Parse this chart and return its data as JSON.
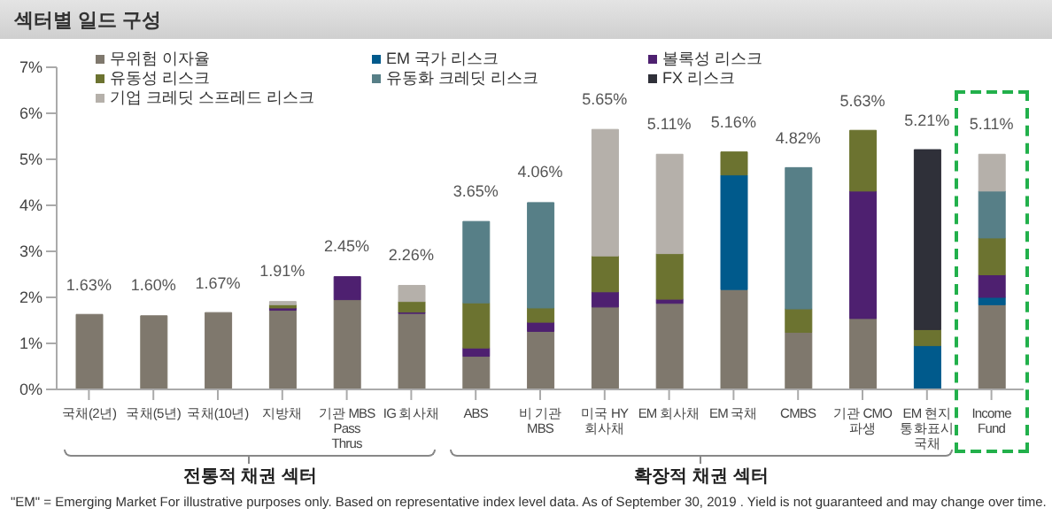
{
  "chart_data": {
    "type": "bar",
    "title": "섹터별 일드 구성",
    "categories": [
      "국채(2년)",
      "국채(5년)",
      "국채(10년)",
      "지방채",
      "기관 MBS\nPass\nThrus",
      "IG 회사채",
      "ABS",
      "비 기관\nMBS",
      "미국 HY\n회사채",
      "EM 회사채",
      "EM 국채",
      "CMBS",
      "기관 CMO\n파생",
      "EM 현지\n통화표시\n국채",
      "Income\nFund"
    ],
    "stacked": true,
    "series": [
      {
        "name": "무위험 이자율",
        "color": "#7f786d",
        "values": [
          1.63,
          1.6,
          1.67,
          1.72,
          1.95,
          1.65,
          0.72,
          1.26,
          1.79,
          1.87,
          2.17,
          1.24,
          1.54,
          0,
          1.84
        ]
      },
      {
        "name": "EM 국가 리스크",
        "color": "#005a8c",
        "values": [
          0,
          0,
          0,
          0,
          0,
          0,
          0,
          0,
          0,
          0,
          2.49,
          0,
          0,
          0.95,
          0.16
        ]
      },
      {
        "name": "볼록성 리스크",
        "color": "#4e2070",
        "values": [
          0,
          0,
          0,
          0.05,
          0.5,
          0.03,
          0.18,
          0.2,
          0.33,
          0.09,
          0,
          0,
          2.77,
          0,
          0.49
        ]
      },
      {
        "name": "유동성 리스크",
        "color": "#6c7330",
        "values": [
          0,
          0,
          0,
          0.07,
          0,
          0.23,
          0.98,
          0.31,
          0.78,
          0.99,
          0.5,
          0.51,
          1.32,
          0.35,
          0.8
        ]
      },
      {
        "name": "유동화 크레딧 리스크",
        "color": "#577f87",
        "values": [
          0,
          0,
          0,
          0,
          0,
          0,
          1.77,
          2.29,
          0,
          0,
          0,
          3.07,
          0,
          0,
          1.02
        ]
      },
      {
        "name": "FX 리스크",
        "color": "#2f3039",
        "values": [
          0,
          0,
          0,
          0,
          0,
          0,
          0,
          0,
          0,
          0,
          0,
          0,
          0,
          3.91,
          0
        ]
      },
      {
        "name": "기업 크레딧 스프레드 리스크",
        "color": "#b5b0aa",
        "values": [
          0,
          0,
          0,
          0.07,
          0,
          0.35,
          0,
          0,
          2.75,
          2.16,
          0,
          0,
          0,
          0,
          0.8
        ]
      }
    ],
    "totals": [
      "1.63%",
      "1.60%",
      "1.67%",
      "1.91%",
      "2.45%",
      "2.26%",
      "3.65%",
      "4.06%",
      "5.65%",
      "5.11%",
      "5.16%",
      "4.82%",
      "5.63%",
      "5.21%",
      "5.11%"
    ],
    "ylim": [
      0,
      7
    ],
    "yticks": [
      {
        "value": 0,
        "label": "0%"
      },
      {
        "value": 1,
        "label": "1%"
      },
      {
        "value": 2,
        "label": "2%"
      },
      {
        "value": 3,
        "label": "3%"
      },
      {
        "value": 4,
        "label": "4%"
      },
      {
        "value": 5,
        "label": "5%"
      },
      {
        "value": 6,
        "label": "6%"
      },
      {
        "value": 7,
        "label": "7%"
      }
    ],
    "grid": false,
    "legend": "top left",
    "annotations": [
      "전통적 채권 섹터",
      "확장적 채권 섹터",
      "\"EM\" = Emerging Market For illustrative purposes only. Based on representative index level data. As of September 30, 2019 . Yield is not guaranteed and may change over time."
    ]
  }
}
